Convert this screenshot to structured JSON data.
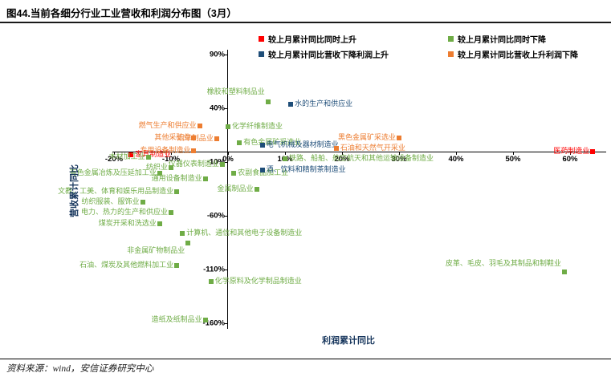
{
  "page": {
    "title": "图44.当前各细分行业工业营收和利润分布图（3月）",
    "source": "资料来源：wind，安信证券研究中心"
  },
  "chart_data": {
    "type": "scatter",
    "title": "图44.当前各细分行业工业营收和利润分布图（3月）",
    "xlabel": "利润累计同比",
    "ylabel": "营收累计同比",
    "xlim": [
      -25,
      66
    ],
    "ylim": [
      -166,
      94
    ],
    "grid": false,
    "legend_position": "top",
    "x_ticks": [
      {
        "value": -20,
        "label": "-20%"
      },
      {
        "value": -10,
        "label": "-10%"
      },
      {
        "value": 0,
        "label": "0%"
      },
      {
        "value": 10,
        "label": "10%"
      },
      {
        "value": 20,
        "label": "20%"
      },
      {
        "value": 30,
        "label": "30%"
      },
      {
        "value": 40,
        "label": "40%"
      },
      {
        "value": 50,
        "label": "50%"
      },
      {
        "value": 60,
        "label": "60%"
      }
    ],
    "y_ticks": [
      {
        "value": 90,
        "label": "90%"
      },
      {
        "value": 40,
        "label": "40%"
      },
      {
        "value": -10,
        "label": "-10%"
      },
      {
        "value": -60,
        "label": "-60%"
      },
      {
        "value": -110,
        "label": "-110%"
      },
      {
        "value": -160,
        "label": "-160%"
      }
    ],
    "series": [
      {
        "name": "较上月累计同比同时上升",
        "color": "#FF0000",
        "points": [
          {
            "label": "医药制造业",
            "x": 64,
            "y": 0,
            "align": "left"
          },
          {
            "label": "家具制造业",
            "x": -17,
            "y": -3,
            "align": "right"
          }
        ]
      },
      {
        "name": "较上月累计同比同时下降",
        "color": "#6FAC46",
        "points": [
          {
            "label": "橡胶和塑料制品业",
            "x": 7,
            "y": 46,
            "align": "left",
            "dy": -12
          },
          {
            "label": "化学纤维制造业",
            "x": 0,
            "y": 23,
            "align": "right"
          },
          {
            "label": "有色金属矿采选业",
            "x": 2,
            "y": 8,
            "align": "right"
          },
          {
            "label": "木材加工业",
            "x": -14,
            "y": -5,
            "align": "left"
          },
          {
            "label": "纺织业",
            "x": -10,
            "y": -15,
            "align": "left"
          },
          {
            "label": "有色金属冶炼及压延加工业",
            "x": -12,
            "y": -20,
            "align": "left"
          },
          {
            "label": "仪器仪表制造业",
            "x": -1,
            "y": -12,
            "align": "left"
          },
          {
            "label": "通用设备制造业",
            "x": -4,
            "y": -25,
            "align": "left"
          },
          {
            "label": "农副食品加工业",
            "x": 1,
            "y": -20,
            "align": "right"
          },
          {
            "label": "铁路、船舶、航空航天和其他运输设备制造业",
            "x": 10,
            "y": -7,
            "align": "right"
          },
          {
            "label": "金属制品业",
            "x": 5,
            "y": -35,
            "align": "left"
          },
          {
            "label": "文教、工美、体育和娱乐用品制造业",
            "x": -9,
            "y": -37,
            "align": "left"
          },
          {
            "label": "纺织服装、服饰业",
            "x": -15,
            "y": -47,
            "align": "left"
          },
          {
            "label": "电力、热力的生产和供应业",
            "x": -10,
            "y": -57,
            "align": "left"
          },
          {
            "label": "煤炭开采和洗选业",
            "x": -12,
            "y": -67,
            "align": "left"
          },
          {
            "label": "计算机、通信和其他电子设备制造业",
            "x": -8,
            "y": -76,
            "align": "right"
          },
          {
            "label": "非金属矿物制品业",
            "x": -7,
            "y": -85,
            "align": "left",
            "dy": 10
          },
          {
            "label": "石油、煤炭及其他燃料加工业",
            "x": -9,
            "y": -106,
            "align": "left"
          },
          {
            "label": "皮革、毛皮、羽毛及其制品和制鞋业",
            "x": 59,
            "y": -112,
            "align": "left",
            "dy": -10
          },
          {
            "label": "化学原料及化学制品制造业",
            "x": -3,
            "y": -121,
            "align": "right"
          },
          {
            "label": "造纸及纸制品业",
            "x": -4,
            "y": -157,
            "align": "left"
          }
        ]
      },
      {
        "name": "较上月累计同比营收下降利润上升",
        "color": "#1F4E79",
        "points": [
          {
            "label": "水的生产和供应业",
            "x": 11,
            "y": 44,
            "align": "right"
          },
          {
            "label": "电气机械及器材制造业",
            "x": 6,
            "y": 6,
            "align": "right"
          },
          {
            "label": "酒、饮料和精制茶制造业",
            "x": 6,
            "y": -17,
            "align": "right"
          }
        ]
      },
      {
        "name": "较上月累计同比营收上升利润下降",
        "color": "#ED7D31",
        "points": [
          {
            "label": "燃气生产和供应业",
            "x": -5,
            "y": 24,
            "align": "left"
          },
          {
            "label": "其他采矿业",
            "x": -6,
            "y": 13,
            "align": "left"
          },
          {
            "label": "烟草制品业",
            "x": -2,
            "y": 12,
            "align": "left"
          },
          {
            "label": "专用设备制造业",
            "x": -6,
            "y": 1,
            "align": "left"
          },
          {
            "label": "黑色金属矿采选业",
            "x": 30,
            "y": 13,
            "align": "left"
          },
          {
            "label": "石油和天然气开采业",
            "x": 19,
            "y": 3,
            "align": "right"
          }
        ]
      }
    ]
  }
}
